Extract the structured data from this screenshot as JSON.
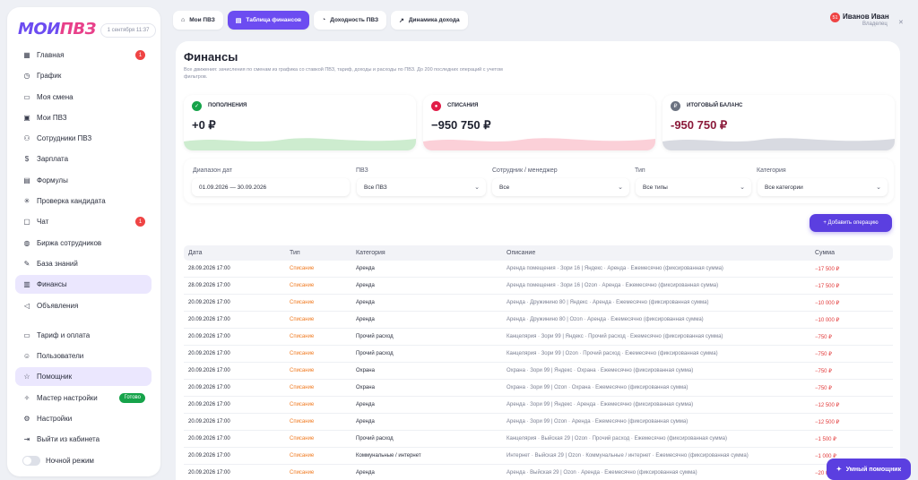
{
  "logo": {
    "part1": "МОИ",
    "part2": "ПВЗ"
  },
  "date": "1 сентября 11:37",
  "sidebar": {
    "items": [
      {
        "label": "Главная",
        "icon": "grid-icon",
        "badge": "1"
      },
      {
        "label": "График",
        "icon": "clock-icon"
      },
      {
        "label": "Моя смена",
        "icon": "monitor-icon"
      },
      {
        "label": "Мои ПВЗ",
        "icon": "box-icon"
      },
      {
        "label": "Сотрудники ПВЗ",
        "icon": "users-icon"
      },
      {
        "label": "Зарплата",
        "icon": "dollar-icon"
      },
      {
        "label": "Формулы",
        "icon": "calculator-icon"
      },
      {
        "label": "Проверка кандидата",
        "icon": "loader-icon"
      },
      {
        "label": "Чат",
        "icon": "chat-icon",
        "badge": "1"
      },
      {
        "label": "Биржа сотрудников",
        "icon": "globe-icon"
      },
      {
        "label": "База знаний",
        "icon": "edit-icon"
      },
      {
        "label": "Финансы",
        "icon": "wallet-icon",
        "active": true
      },
      {
        "label": "Объявления",
        "icon": "megaphone-icon"
      }
    ],
    "bottom": [
      {
        "label": "Тариф и оплата",
        "icon": "card-icon"
      },
      {
        "label": "Пользователи",
        "icon": "user-icon"
      },
      {
        "label": "Помощник",
        "icon": "star-icon",
        "active": true
      },
      {
        "label": "Мастер настройки",
        "icon": "wand-icon",
        "tag": "Готово"
      },
      {
        "label": "Настройки",
        "icon": "gear-icon"
      },
      {
        "label": "Выйти из кабинета",
        "icon": "logout-icon"
      }
    ],
    "night_mode": "Ночной режим"
  },
  "tabs": [
    {
      "label": "Мои ПВЗ",
      "icon": "home-icon"
    },
    {
      "label": "Таблица финансов",
      "icon": "table-icon",
      "active": true
    },
    {
      "label": "Доходность ПВЗ",
      "icon": "gauge-icon"
    },
    {
      "label": "Динамика дохода",
      "icon": "trend-icon"
    }
  ],
  "user": {
    "name": "Иванов Иван",
    "role": "Владелец",
    "badge": "51"
  },
  "page": {
    "title": "Финансы",
    "description": "Все движения: зачисления по сменам из графика со ставкой ПВЗ, тариф, доходы и расходы по ПВЗ. До 200 последних операций с учетом фильтров."
  },
  "cards": [
    {
      "label": "ПОПОЛНЕНИЯ",
      "value": "+0 ₽",
      "color": "#16a34a",
      "icon": "check-icon"
    },
    {
      "label": "СПИСАНИЯ",
      "value": "−950 750 ₽",
      "color": "#e11d48",
      "icon": "minus-circle-icon"
    },
    {
      "label": "ИТОГОВЫЙ БАЛАНС",
      "value": "-950 750 ₽",
      "color": "#8b1a3a",
      "icon": "wallet-icon"
    }
  ],
  "filters": {
    "date_range": {
      "label": "Диапазон дат",
      "value": "01.09.2026 — 30.09.2026"
    },
    "pvz": {
      "label": "ПВЗ",
      "value": "Все ПВЗ"
    },
    "employee": {
      "label": "Сотрудник / менеджер",
      "value": "Все"
    },
    "type": {
      "label": "Тип",
      "value": "Все типы"
    },
    "category": {
      "label": "Категория",
      "value": "Все категории"
    }
  },
  "add_button": "+ Добавить операцию",
  "table": {
    "headers": [
      "Дата",
      "Тип",
      "Категория",
      "Описание",
      "Сумма"
    ],
    "rows": [
      [
        "28.09.2026 17:00",
        "Списание",
        "Аренда",
        "Аренда помещения · Зори 16 | Яндекс · Аренда · Ежемесячно (фиксированная сумма)",
        "−17 500 ₽"
      ],
      [
        "28.09.2026 17:00",
        "Списание",
        "Аренда",
        "Аренда помещения · Зори 16 | Ozon · Аренда · Ежемесячно (фиксированная сумма)",
        "−17 500 ₽"
      ],
      [
        "20.09.2026 17:00",
        "Списание",
        "Аренда",
        "Аренда · Дружинино 80 | Яндекс · Аренда · Ежемесячно (фиксированная сумма)",
        "−10 000 ₽"
      ],
      [
        "20.09.2026 17:00",
        "Списание",
        "Аренда",
        "Аренда · Дружинино 80 | Ozon · Аренда · Ежемесячно (фиксированная сумма)",
        "−10 000 ₽"
      ],
      [
        "20.09.2026 17:00",
        "Списание",
        "Прочий расход",
        "Канцелярия · Зори 99 | Яндекс · Прочий расход · Ежемесячно (фиксированная сумма)",
        "−750 ₽"
      ],
      [
        "20.09.2026 17:00",
        "Списание",
        "Прочий расход",
        "Канцелярия · Зори 99 | Ozon · Прочий расход · Ежемесячно (фиксированная сумма)",
        "−750 ₽"
      ],
      [
        "20.09.2026 17:00",
        "Списание",
        "Охрана",
        "Охрана · Зори 99 | Яндекс · Охрана · Ежемесячно (фиксированная сумма)",
        "−750 ₽"
      ],
      [
        "20.09.2026 17:00",
        "Списание",
        "Охрана",
        "Охрана · Зори 99 | Ozon · Охрана · Ежемесячно (фиксированная сумма)",
        "−750 ₽"
      ],
      [
        "20.09.2026 17:00",
        "Списание",
        "Аренда",
        "Аренда · Зори 99 | Яндекс · Аренда · Ежемесячно (фиксированная сумма)",
        "−12 500 ₽"
      ],
      [
        "20.09.2026 17:00",
        "Списание",
        "Аренда",
        "Аренда · Зори 99 | Ozon · Аренда · Ежемесячно (фиксированная сумма)",
        "−12 500 ₽"
      ],
      [
        "20.09.2026 17:00",
        "Списание",
        "Прочий расход",
        "Канцелярия · Выйская 29 | Ozon · Прочий расход · Ежемесячно (фиксированная сумма)",
        "−1 500 ₽"
      ],
      [
        "20.09.2026 17:00",
        "Списание",
        "Коммунальные / интернет",
        "Интернет · Выйская 29 | Ozon · Коммунальные / интернет · Ежемесячно (фиксированная сумма)",
        "−1 000 ₽"
      ],
      [
        "20.09.2026 17:00",
        "Списание",
        "Аренда",
        "Аренда · Выйская 29 | Ozon · Аренда · Ежемесячно (фиксированная сумма)",
        "−20 000 ₽"
      ]
    ]
  },
  "helper_button": "Умный помощник"
}
